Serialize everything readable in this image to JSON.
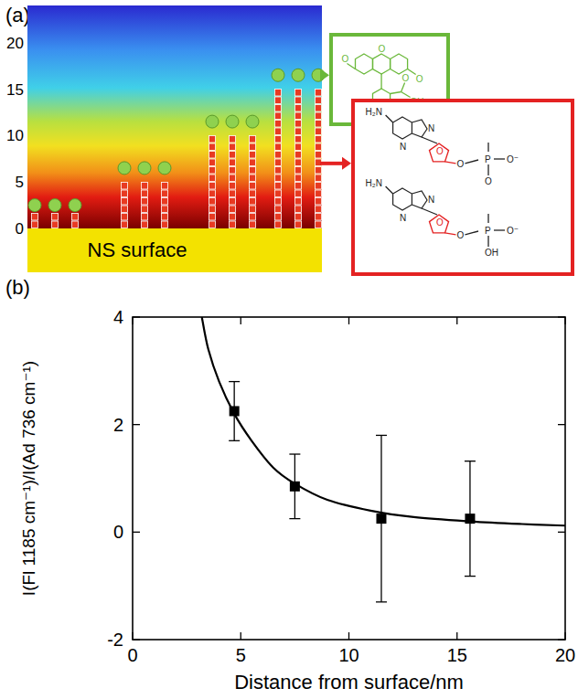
{
  "diagram": {
    "panel_label": "(a)",
    "ylim": [
      0,
      24
    ],
    "yticks": [
      0,
      5,
      10,
      15,
      20
    ],
    "surface_label": "NS surface",
    "strand_tops": [
      2.5,
      6.5,
      11.5,
      16.5
    ],
    "fluorescein_atoms": [
      "O",
      "O",
      "O",
      "O",
      "OH"
    ],
    "nucleotides": [
      [
        "H₂N",
        "N",
        "N",
        "O",
        "O",
        "P",
        "O⁻",
        "O"
      ],
      [
        "H₂N",
        "N",
        "N",
        "O",
        "O",
        "P",
        "O⁻",
        "OH"
      ]
    ]
  },
  "chart_data": {
    "type": "scatter",
    "panel_label": "(b)",
    "x_label": "Distance from surface/nm",
    "y_label": "I(Fl 1185 cm⁻¹)/I(Ad 736 cm⁻¹)",
    "xlim": [
      0,
      20
    ],
    "ylim": [
      -2,
      4
    ],
    "xticks": [
      0,
      5,
      10,
      15,
      20
    ],
    "yticks": [
      -2,
      0,
      2,
      4
    ],
    "series": [
      {
        "type": "scatter",
        "marker": "square",
        "color": "#000000",
        "x": [
          4.7,
          7.5,
          11.5,
          15.6
        ],
        "values": [
          2.25,
          0.85,
          0.25,
          0.25
        ],
        "errors": [
          0.55,
          0.6,
          1.55,
          1.07
        ]
      },
      {
        "type": "line",
        "line_style": "solid",
        "color": "#000000",
        "x": [
          3.2,
          3.5,
          4,
          4.7,
          5.5,
          6.5,
          7.5,
          9,
          11,
          13,
          15.6,
          18,
          20
        ],
        "values": [
          4,
          3.4,
          2.8,
          2.2,
          1.7,
          1.2,
          0.9,
          0.6,
          0.4,
          0.28,
          0.2,
          0.15,
          0.12
        ]
      }
    ]
  }
}
